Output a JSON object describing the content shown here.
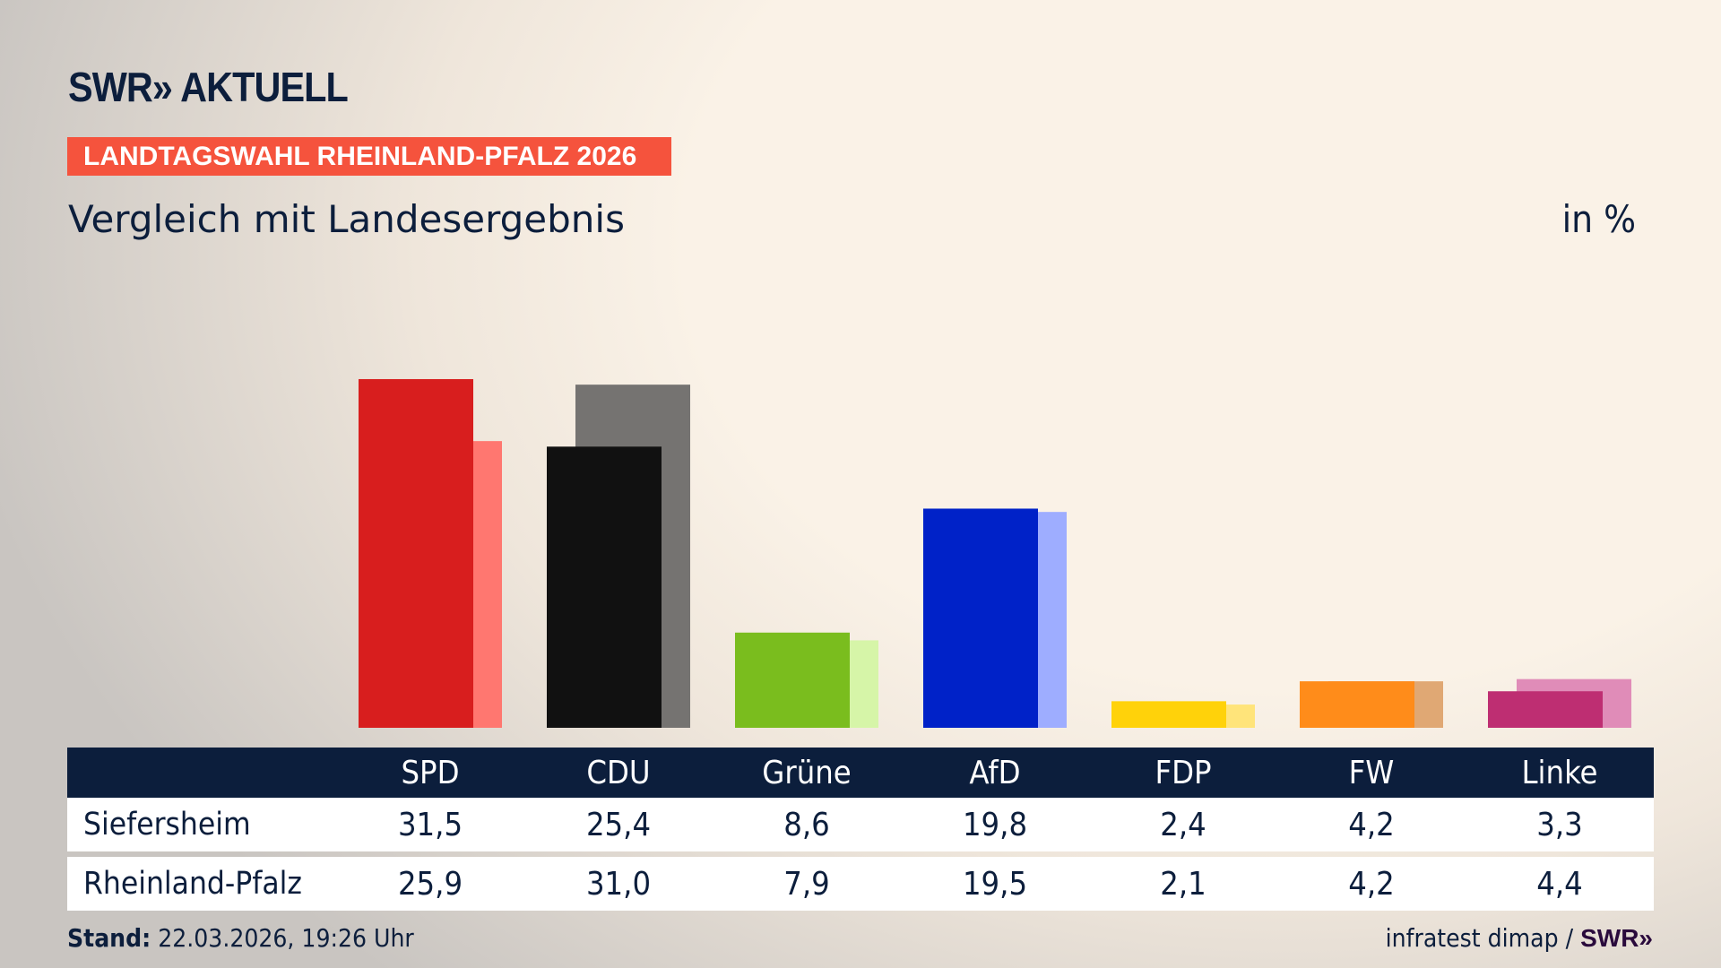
{
  "header": {
    "logo": "SWR» AKTUELL",
    "banner": "LANDTAGSWAHL RHEINLAND-PFALZ 2026",
    "subtitle": "Vergleich mit Landesergebnis",
    "unit": "in %"
  },
  "chart_data": {
    "type": "bar",
    "title": "Vergleich mit Landesergebnis",
    "ylabel": "in %",
    "ylim": [
      0,
      32
    ],
    "categories": [
      "SPD",
      "CDU",
      "Grüne",
      "AfD",
      "FDP",
      "FW",
      "Linke"
    ],
    "series": [
      {
        "name": "Siefersheim",
        "values": [
          31.5,
          25.4,
          8.6,
          19.8,
          2.4,
          4.2,
          3.3
        ],
        "labels": [
          "31,5",
          "25,4",
          "8,6",
          "19,8",
          "2,4",
          "4,2",
          "3,3"
        ],
        "colors": [
          "#d81e1e",
          "#111111",
          "#7abd1e",
          "#0022c8",
          "#ffd20a",
          "#ff8c1a",
          "#be2e72"
        ]
      },
      {
        "name": "Rheinland-Pfalz",
        "values": [
          25.9,
          31.0,
          7.9,
          19.5,
          2.1,
          4.2,
          4.4
        ],
        "labels": [
          "25,9",
          "31,0",
          "7,9",
          "19,5",
          "2,1",
          "4,2",
          "4,4"
        ],
        "colors": [
          "#ff7770",
          "#757371",
          "#d6f5a8",
          "#9eadff",
          "#ffe47a",
          "#e0a874",
          "#e08cb8"
        ]
      }
    ]
  },
  "footer": {
    "stand_label": "Stand:",
    "stand_value": "22.03.2026, 19:26 Uhr",
    "source": "infratest dimap /",
    "source_logo": "SWR»"
  }
}
